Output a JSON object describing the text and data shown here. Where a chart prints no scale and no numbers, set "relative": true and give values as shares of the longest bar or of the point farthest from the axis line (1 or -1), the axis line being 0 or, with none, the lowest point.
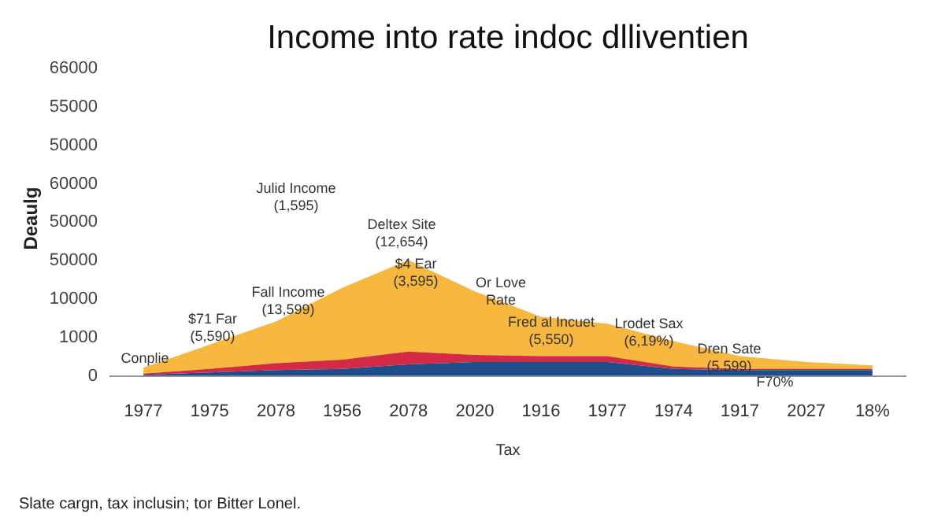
{
  "chart_data": {
    "type": "area",
    "title": "Income into rate indoc dlliventien",
    "xlabel": "Tax",
    "ylabel": "Deaulg",
    "categories": [
      "1977",
      "1975",
      "2078",
      "1956",
      "2078",
      "2020",
      "1916",
      "1977",
      "1974",
      "1917",
      "2027",
      "18%"
    ],
    "series": [
      {
        "color": "#1f4e8c",
        "values": [
          0.01,
          0.03,
          0.05,
          0.06,
          0.1,
          0.12,
          0.12,
          0.12,
          0.06,
          0.05,
          0.05,
          0.05
        ]
      },
      {
        "color": "#d42a45",
        "values": [
          0.01,
          0.03,
          0.06,
          0.08,
          0.11,
          0.06,
          0.05,
          0.05,
          0.02,
          0.01,
          0.01,
          0.01
        ]
      },
      {
        "color": "#f8b73e",
        "values": [
          0.05,
          0.21,
          0.36,
          0.62,
          0.79,
          0.55,
          0.34,
          0.28,
          0.22,
          0.11,
          0.06,
          0.03
        ]
      }
    ],
    "stacked": true,
    "relative": true,
    "legend": false,
    "marker": "none",
    "annotations": [
      "66000",
      "55000",
      "50000",
      "60000",
      "50000",
      "50000",
      "10000",
      "1000",
      "0",
      "Conplie",
      "$71 Far\n(5,590)",
      "Fall Income\n(13,599)",
      "Julid Income\n(1,595)",
      "$4 Ear\n(3,595)",
      "Deltex Site\n(12,654)",
      "Or Love\nRate",
      "Fred al Incuet\n(5,550)",
      "Lrodet Sax\n(6,19%)",
      "Dren Sate\n(5,599)",
      "F70%",
      "Slate cargn, tax inclusin; tor Bitter Lonel."
    ]
  }
}
